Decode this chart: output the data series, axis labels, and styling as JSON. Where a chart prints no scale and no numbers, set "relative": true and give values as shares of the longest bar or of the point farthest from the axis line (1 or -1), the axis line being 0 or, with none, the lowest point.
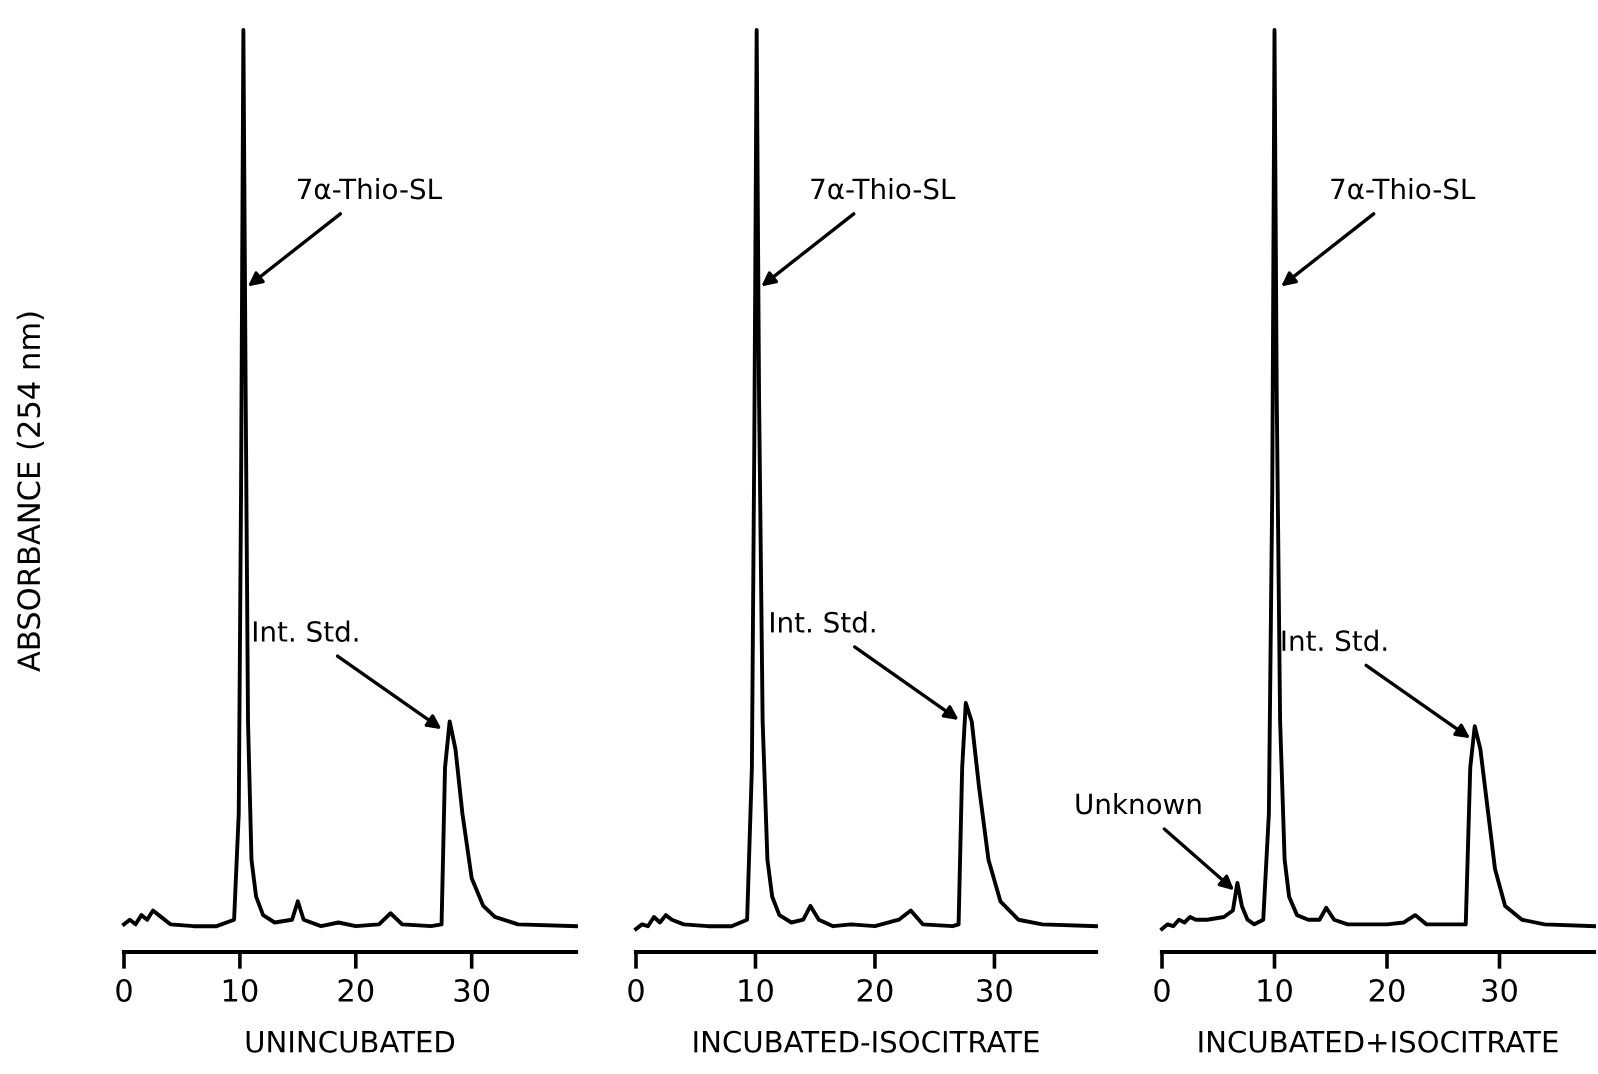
{
  "chart_data": [
    {
      "type": "line",
      "relative": true,
      "ylabel": "ABSORBANCE (254 nm)",
      "xlabel": "UNINCUBATED",
      "xlim": [
        0,
        39
      ],
      "xticks": [
        0,
        10,
        20,
        30
      ],
      "tick_labels": "x",
      "marker": "none",
      "line_style": "solid",
      "series": [
        {
          "color": "#000000",
          "x": [
            0,
            0.5,
            1,
            1.5,
            2,
            2.5,
            3,
            4,
            6,
            8,
            9.5,
            9.9,
            10.1,
            10.3,
            10.5,
            10.7,
            11,
            11.4,
            12,
            13,
            14.5,
            15,
            15.5,
            17,
            18.5,
            20,
            22,
            23,
            24,
            26.5,
            27.4,
            27.7,
            28.1,
            28.6,
            29.2,
            30,
            31,
            32,
            34,
            39
          ],
          "values": [
            0.03,
            0.035,
            0.03,
            0.04,
            0.035,
            0.045,
            0.04,
            0.03,
            0.028,
            0.028,
            0.035,
            0.15,
            0.5,
            1.0,
            0.6,
            0.25,
            0.1,
            0.06,
            0.04,
            0.032,
            0.035,
            0.055,
            0.035,
            0.028,
            0.032,
            0.028,
            0.03,
            0.042,
            0.03,
            0.028,
            0.03,
            0.2,
            0.25,
            0.22,
            0.15,
            0.08,
            0.05,
            0.038,
            0.03,
            0.028
          ]
        }
      ],
      "annotations": [
        {
          "text": "7α-Thio-SL",
          "x": 10.5,
          "y": 0.72
        },
        {
          "text": "Int. Std.",
          "x": 27.6,
          "y": 0.24
        }
      ]
    },
    {
      "type": "line",
      "relative": true,
      "xlabel": "INCUBATED-ISOCITRATE",
      "xlim": [
        0,
        38.5
      ],
      "xticks": [
        0,
        10,
        20,
        30
      ],
      "tick_labels": "x",
      "marker": "none",
      "line_style": "solid",
      "series": [
        {
          "color": "#000000",
          "x": [
            0,
            0.5,
            1,
            1.5,
            2,
            2.5,
            3,
            4,
            6,
            8,
            9.3,
            9.7,
            9.9,
            10.1,
            10.3,
            10.6,
            11,
            11.4,
            12,
            13,
            14,
            14.6,
            15.3,
            16.5,
            18,
            20,
            22,
            23,
            24,
            26.5,
            27,
            27.3,
            27.6,
            28.1,
            28.7,
            29.5,
            30.5,
            32,
            34,
            38.5
          ],
          "values": [
            0.025,
            0.03,
            0.028,
            0.038,
            0.032,
            0.04,
            0.035,
            0.03,
            0.028,
            0.028,
            0.035,
            0.2,
            0.55,
            1.0,
            0.6,
            0.25,
            0.1,
            0.06,
            0.04,
            0.032,
            0.035,
            0.05,
            0.035,
            0.028,
            0.03,
            0.028,
            0.035,
            0.045,
            0.03,
            0.028,
            0.03,
            0.2,
            0.27,
            0.25,
            0.18,
            0.1,
            0.055,
            0.035,
            0.03,
            0.028
          ]
        }
      ],
      "annotations": [
        {
          "text": "7α-Thio-SL",
          "x": 10.3,
          "y": 0.72
        },
        {
          "text": "Int. Std.",
          "x": 27.2,
          "y": 0.25
        }
      ]
    },
    {
      "type": "line",
      "relative": true,
      "xlabel": "INCUBATED+ISOCITRATE",
      "xlim": [
        0,
        38.4
      ],
      "xticks": [
        0,
        10,
        20,
        30
      ],
      "tick_labels": "x",
      "marker": "none",
      "line_style": "solid",
      "series": [
        {
          "color": "#000000",
          "x": [
            0,
            0.5,
            1,
            1.5,
            2,
            2.5,
            3,
            4,
            5.5,
            6.3,
            6.7,
            7.1,
            7.6,
            8.2,
            9,
            9.5,
            9.8,
            10,
            10.2,
            10.5,
            10.9,
            11.3,
            12,
            13,
            14,
            14.6,
            15.3,
            16.5,
            18,
            20,
            21.5,
            22.5,
            23.5,
            26,
            27,
            27.4,
            27.8,
            28.3,
            28.9,
            29.6,
            30.5,
            32,
            34,
            38.4
          ],
          "values": [
            0.025,
            0.03,
            0.028,
            0.035,
            0.032,
            0.038,
            0.035,
            0.035,
            0.038,
            0.045,
            0.075,
            0.05,
            0.035,
            0.03,
            0.035,
            0.15,
            0.5,
            1.0,
            0.6,
            0.25,
            0.1,
            0.06,
            0.04,
            0.035,
            0.035,
            0.048,
            0.035,
            0.03,
            0.03,
            0.03,
            0.032,
            0.04,
            0.03,
            0.03,
            0.03,
            0.2,
            0.245,
            0.22,
            0.16,
            0.09,
            0.05,
            0.035,
            0.03,
            0.028
          ]
        }
      ],
      "annotations": [
        {
          "text": "Unknown",
          "x": 6.6,
          "y": 0.065
        },
        {
          "text": "7α-Thio-SL",
          "x": 10.4,
          "y": 0.72
        },
        {
          "text": "Int. Std.",
          "x": 27.6,
          "y": 0.23
        }
      ]
    }
  ]
}
